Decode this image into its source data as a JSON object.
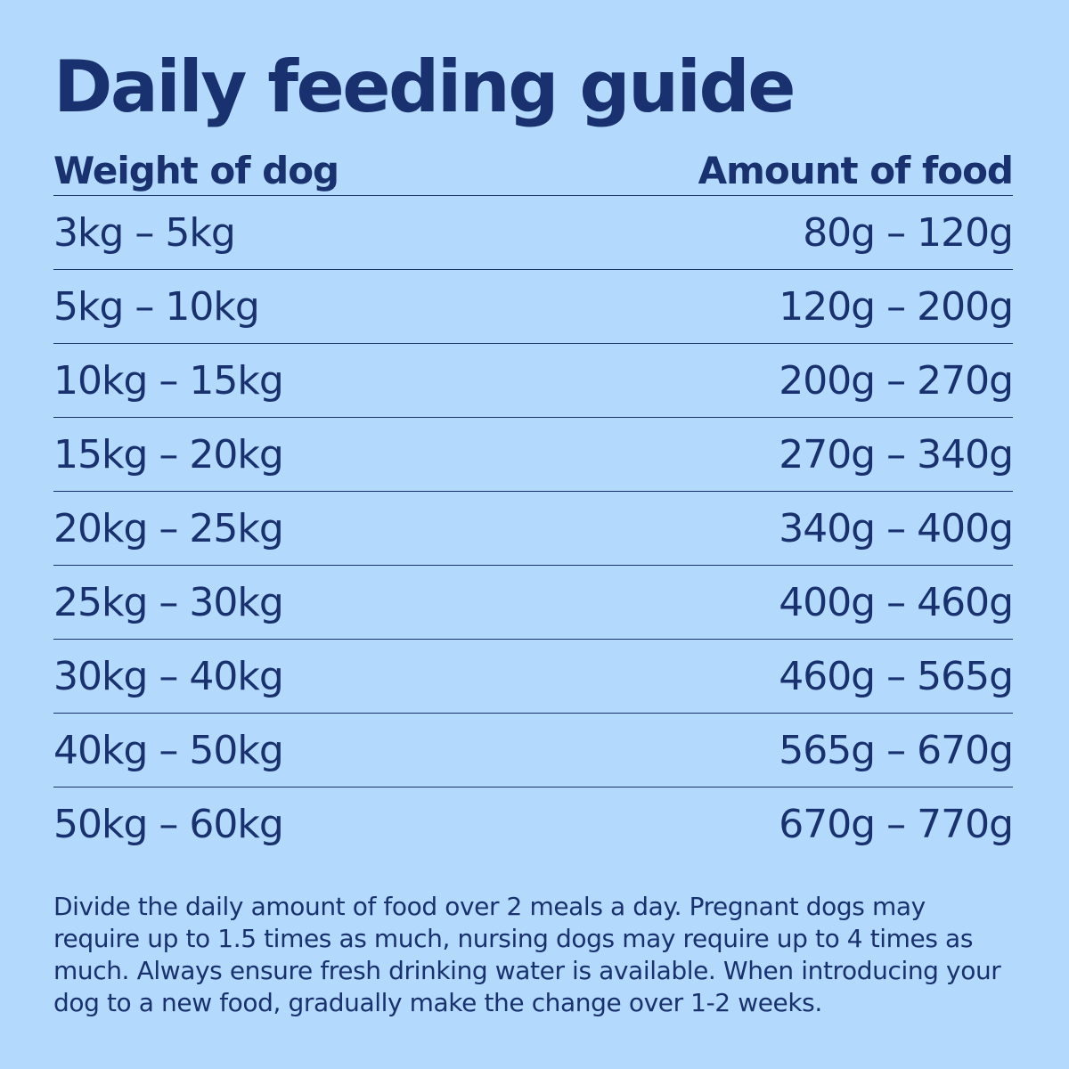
{
  "title": "Daily feeding guide",
  "table": {
    "headers": {
      "weight": "Weight of dog",
      "amount": "Amount of food"
    },
    "rows": [
      {
        "weight": "3kg – 5kg",
        "amount": "80g – 120g"
      },
      {
        "weight": "5kg – 10kg",
        "amount": "120g – 200g"
      },
      {
        "weight": "10kg – 15kg",
        "amount": "200g – 270g"
      },
      {
        "weight": "15kg – 20kg",
        "amount": "270g – 340g"
      },
      {
        "weight": "20kg – 25kg",
        "amount": "340g – 400g"
      },
      {
        "weight": "25kg – 30kg",
        "amount": "400g – 460g"
      },
      {
        "weight": "30kg – 40kg",
        "amount": "460g – 565g"
      },
      {
        "weight": "40kg – 50kg",
        "amount": "565g – 670g"
      },
      {
        "weight": "50kg – 60kg",
        "amount": "670g – 770g"
      }
    ]
  },
  "note": "Divide the daily amount of food over 2 meals a day. Pregnant dogs may require up to 1.5 times as much, nursing dogs may require up to 4 times as much. Always ensure fresh drinking water is available. When introducing your dog to a new food, gradually make the change over 1-2 weeks.",
  "colors": {
    "background": "#b3d9fc",
    "text": "#1a3170"
  }
}
